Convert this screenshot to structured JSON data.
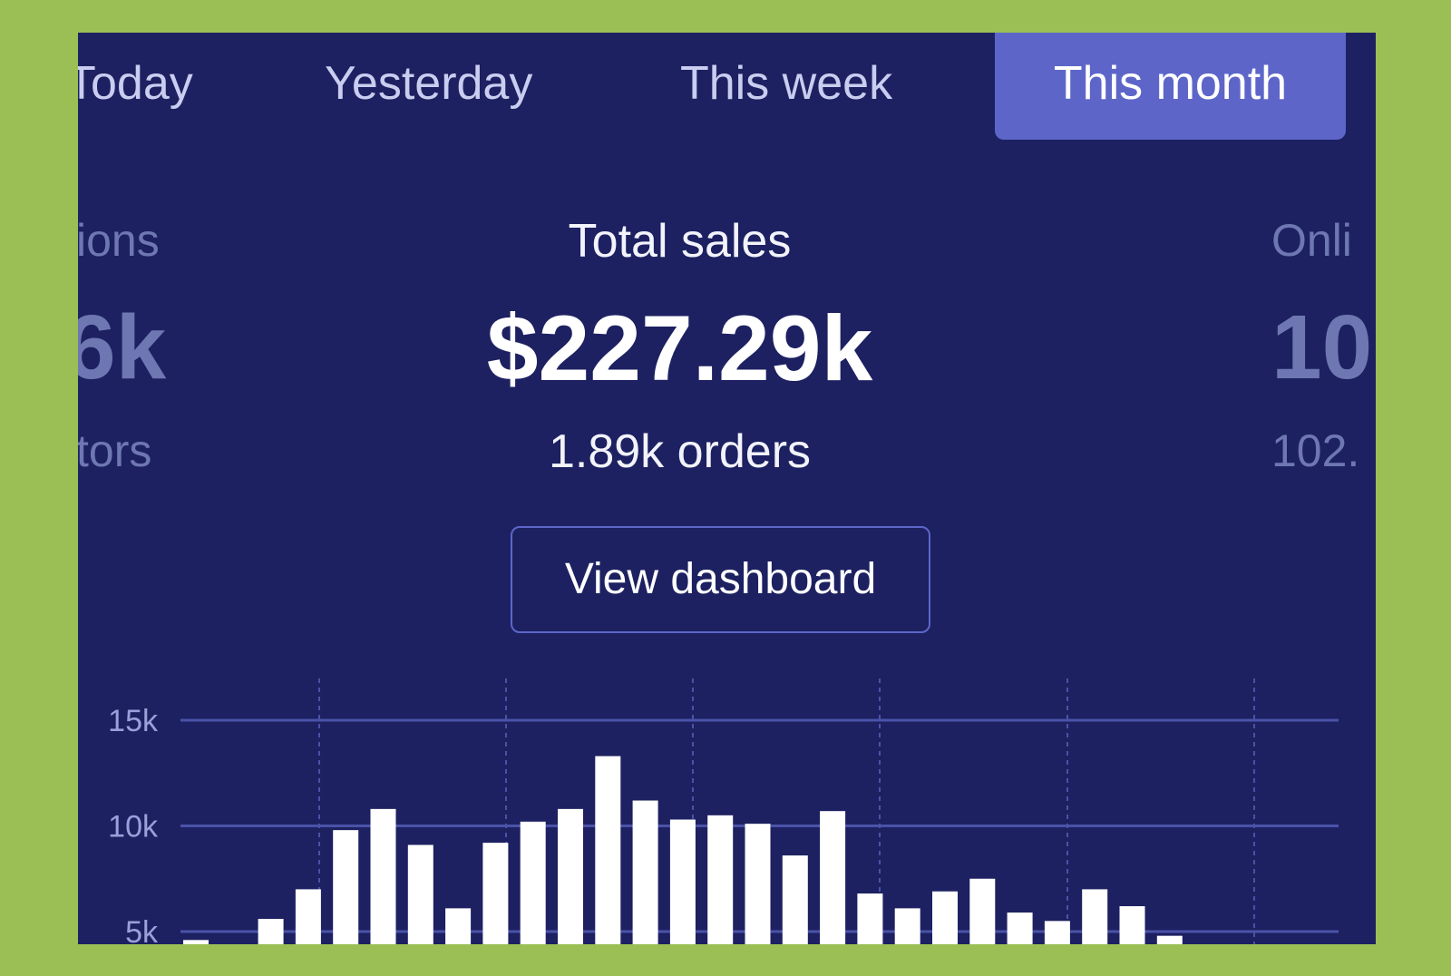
{
  "colors": {
    "background": "#9bbf54",
    "panel": "#1d2161",
    "active_tab": "#5d66c8",
    "bar": "#ffffff",
    "grid": "#4a52a8"
  },
  "tabs": [
    {
      "label": "Today",
      "active": false
    },
    {
      "label": "Yesterday",
      "active": false
    },
    {
      "label": "This week",
      "active": false
    },
    {
      "label": "This month",
      "active": true
    }
  ],
  "left_stat": {
    "title": "ions",
    "value": "6k",
    "sub": "tors"
  },
  "main_stat": {
    "title": "Total sales",
    "value": "$227.29k",
    "sub": "1.89k orders",
    "button": "View dashboard"
  },
  "right_stat": {
    "title": "Onli",
    "value": "10",
    "sub": "102."
  },
  "chart_data": {
    "type": "bar",
    "y_ticks": [
      "15k",
      "10k",
      "5k"
    ],
    "ylim_visible": [
      4.5,
      15
    ],
    "grid": true,
    "values_k": [
      4.6,
      null,
      5.6,
      7.0,
      9.8,
      10.8,
      9.1,
      6.1,
      9.2,
      10.2,
      10.8,
      13.3,
      11.2,
      10.3,
      10.5,
      10.1,
      8.6,
      10.7,
      6.8,
      6.1,
      6.9,
      7.5,
      5.9,
      5.5,
      7.0,
      6.2,
      4.8
    ]
  }
}
